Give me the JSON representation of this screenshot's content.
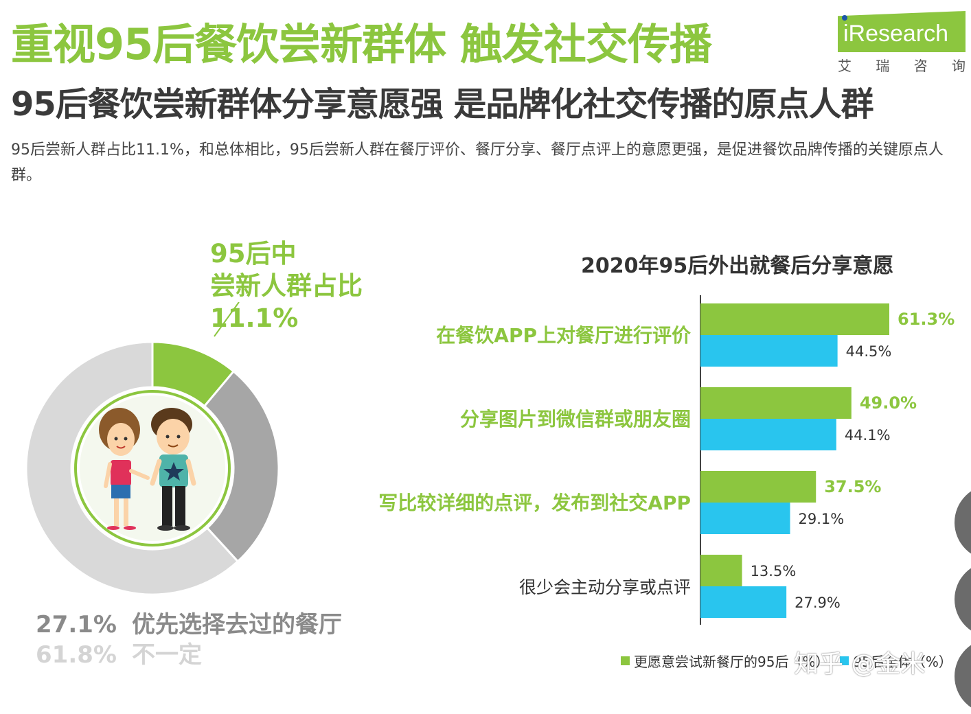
{
  "header": {
    "title": "重视95后餐饮尝新群体 触发社交传播",
    "subtitle": "95后餐饮尝新群体分享意愿强 是品牌化社交传播的原点人群",
    "description": "95后尝新人群占比11.1%，和总体相比，95后尝新人群在餐厅评价、餐厅分享、餐厅点评上的意愿更强，是促进餐饮品牌传播的关键原点人群。"
  },
  "logo": {
    "text": "iResearch",
    "cn": [
      "艾",
      "瑞",
      "咨",
      "询"
    ]
  },
  "donut": {
    "callout_line1": "95后中",
    "callout_line2": "尝新人群占比",
    "callout_value": "11.1%",
    "legend": [
      {
        "value": "27.1%",
        "label": "优先选择去过的餐厅"
      },
      {
        "value": "61.8%",
        "label": "不一定"
      }
    ]
  },
  "chart_data": [
    {
      "type": "pie",
      "subtype": "donut",
      "title": "",
      "slices": [
        {
          "label": "尝新人群",
          "value": 11.1,
          "color": "#8cc63f"
        },
        {
          "label": "优先选择去过的餐厅",
          "value": 27.1,
          "color": "#a6a6a6"
        },
        {
          "label": "不一定",
          "value": 61.8,
          "color": "#d9d9d9"
        }
      ]
    },
    {
      "type": "bar",
      "orientation": "horizontal",
      "title": "2020年95后外出就餐后分享意愿",
      "categories": [
        "在餐饮APP上对餐厅进行评价",
        "分享图片到微信群或朋友圈",
        "写比较详细的点评，发布到社交APP",
        "很少会主动分享或点评"
      ],
      "series": [
        {
          "name": "更愿意尝试新餐厅的95后",
          "color": "#8cc63f",
          "values": [
            61.3,
            49.0,
            37.5,
            13.5
          ],
          "labels": [
            "61.3%",
            "49.0%",
            "37.5%",
            "13.5%"
          ]
        },
        {
          "name": "95后全体",
          "color": "#29c5ee",
          "values": [
            44.5,
            44.1,
            29.1,
            27.9
          ],
          "labels": [
            "44.5%",
            "44.1%",
            "29.1%",
            "27.9%"
          ]
        }
      ],
      "xlim": [
        0,
        61.3
      ],
      "legend_position": "bottom"
    }
  ],
  "legend_bottom": {
    "series1": "更愿意尝试新餐厅的95后（%）",
    "series2": "95后全体（%）"
  },
  "watermark": "知乎 @金米"
}
